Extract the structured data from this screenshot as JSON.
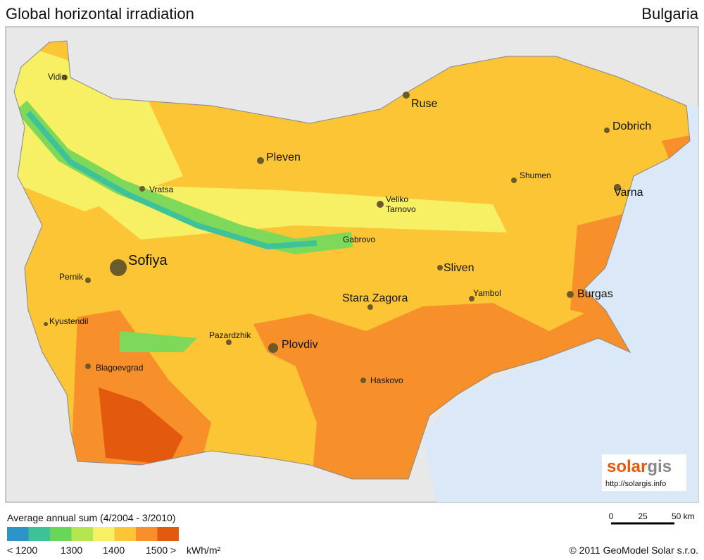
{
  "header": {
    "title": "Global horizontal irradiation",
    "country": "Bulgaria"
  },
  "cities": [
    {
      "label": "Vidin"
    },
    {
      "label": "Ruse"
    },
    {
      "label": "Dobrich"
    },
    {
      "label": "Pleven"
    },
    {
      "label": "Vratsa"
    },
    {
      "label": "Shumen"
    },
    {
      "label": "Varna"
    },
    {
      "label": "Veliko"
    },
    {
      "label": "Tarnovo"
    },
    {
      "label": "Gabrovo"
    },
    {
      "label": "Sofiya"
    },
    {
      "label": "Sliven"
    },
    {
      "label": "Pernik"
    },
    {
      "label": "Burgas"
    },
    {
      "label": "Yambol"
    },
    {
      "label": "Stara Zagora"
    },
    {
      "label": "Kyustendil"
    },
    {
      "label": "Pazardzhik"
    },
    {
      "label": "Plovdiv"
    },
    {
      "label": "Blagoevgrad"
    },
    {
      "label": "Haskovo"
    }
  ],
  "logo": {
    "brand_left": "solar",
    "brand_right": "gis",
    "url": "http://solargis.info"
  },
  "legend": {
    "title": "Average annual sum (4/2004 - 3/2010)",
    "colors": [
      "#2e93c6",
      "#3ec29a",
      "#68d757",
      "#b6e64f",
      "#f8f064",
      "#fbc536",
      "#f78f2b",
      "#e35a0e"
    ],
    "labels": [
      "< 1200",
      "1300",
      "1400",
      "1500 >"
    ],
    "unit": "kWh/m²"
  },
  "scale": {
    "labels": [
      "0",
      "25",
      "50 km"
    ]
  },
  "footer": {
    "copyright": "© 2011 GeoModel Solar s.r.o."
  }
}
